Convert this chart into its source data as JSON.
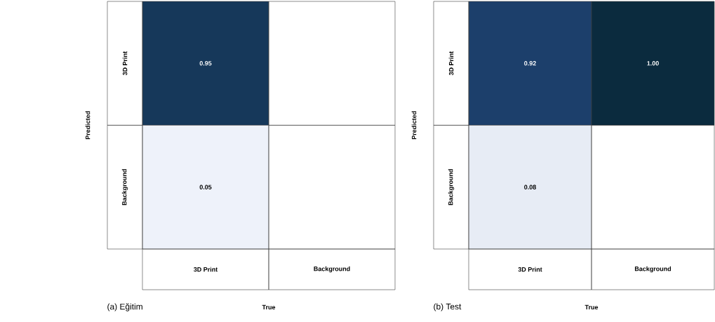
{
  "chart_data": [
    {
      "type": "heatmap",
      "title": "(a) Eğitim",
      "xlabel": "True",
      "ylabel": "Predicted",
      "categories": [
        "3D Print",
        "Background"
      ],
      "y_categories": [
        "3D Print",
        "Background"
      ],
      "cells": [
        [
          0.95,
          null
        ],
        [
          0.05,
          null
        ]
      ],
      "cell_labels": [
        [
          "0.95",
          null
        ],
        [
          "0.05",
          null
        ]
      ]
    },
    {
      "type": "heatmap",
      "title": "(b) Test",
      "xlabel": "True",
      "ylabel": "Predicted",
      "categories": [
        "3D Print",
        "Background"
      ],
      "y_categories": [
        "3D Print",
        "Background"
      ],
      "cells": [
        [
          0.92,
          1.0
        ],
        [
          0.08,
          null
        ]
      ],
      "cell_labels": [
        [
          "0.92",
          "1.00"
        ],
        [
          "0.08",
          null
        ]
      ]
    }
  ]
}
